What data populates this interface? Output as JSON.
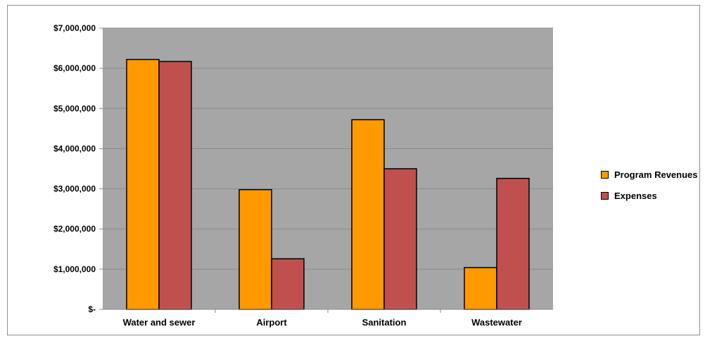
{
  "chart_data": {
    "type": "bar",
    "title": "",
    "xlabel": "",
    "ylabel": "",
    "categories": [
      "Water and sewer",
      "Airport",
      "Sanitation",
      "Wastewater"
    ],
    "series": [
      {
        "name": "Program Revenues",
        "color": "#FF9900",
        "values": [
          6220000,
          2980000,
          4720000,
          1040000
        ]
      },
      {
        "name": "Expenses",
        "color": "#C0504D",
        "values": [
          6170000,
          1260000,
          3500000,
          3260000
        ]
      }
    ],
    "ylim": [
      0,
      7000000
    ],
    "yticks": [
      0,
      1000000,
      2000000,
      3000000,
      4000000,
      5000000,
      6000000,
      7000000
    ],
    "ytick_labels": [
      "$-",
      "$1,000,000",
      "$2,000,000",
      "$3,000,000",
      "$4,000,000",
      "$5,000,000",
      "$6,000,000",
      "$7,000,000"
    ],
    "grid": true,
    "plot_background": "#A6A6A6",
    "legend_position": "right"
  }
}
